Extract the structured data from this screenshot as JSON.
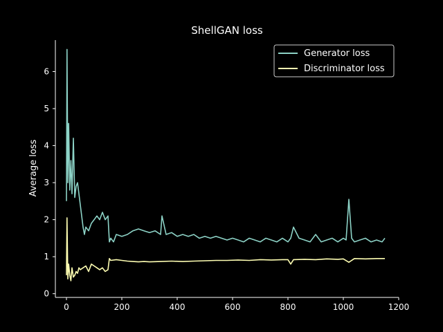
{
  "chart_data": {
    "type": "line",
    "title": "ShellGAN loss",
    "xlabel": "",
    "ylabel": "Average loss",
    "xlim": [
      -40,
      1200
    ],
    "ylim": [
      -0.1,
      6.85
    ],
    "xticks": [
      0,
      200,
      400,
      600,
      800,
      1000,
      1200
    ],
    "yticks": [
      0,
      1,
      2,
      3,
      4,
      5,
      6
    ],
    "xtick_labels": [
      "0",
      "200",
      "400",
      "600",
      "800",
      "1000",
      "1200"
    ],
    "ytick_labels": [
      "0",
      "1",
      "2",
      "3",
      "4",
      "5",
      "6"
    ],
    "grid": false,
    "legend_position": "top-right",
    "series": [
      {
        "name": "Generator loss",
        "color": "#8dd3c7",
        "x": [
          0,
          2,
          5,
          8,
          12,
          16,
          20,
          25,
          30,
          35,
          40,
          45,
          50,
          55,
          60,
          65,
          70,
          80,
          90,
          100,
          110,
          120,
          130,
          140,
          150,
          155,
          160,
          170,
          180,
          200,
          220,
          240,
          260,
          280,
          300,
          320,
          340,
          345,
          360,
          380,
          400,
          420,
          440,
          460,
          480,
          500,
          520,
          540,
          560,
          580,
          600,
          620,
          640,
          660,
          680,
          700,
          720,
          740,
          760,
          780,
          800,
          810,
          820,
          840,
          860,
          880,
          900,
          920,
          940,
          960,
          980,
          1000,
          1010,
          1020,
          1030,
          1040,
          1060,
          1080,
          1100,
          1120,
          1140,
          1150
        ],
        "y": [
          2.5,
          6.6,
          3.0,
          4.6,
          2.8,
          3.6,
          2.7,
          4.2,
          2.6,
          2.9,
          3.0,
          2.7,
          2.4,
          2.1,
          1.8,
          1.6,
          1.8,
          1.7,
          1.9,
          2.0,
          2.1,
          2.0,
          2.2,
          2.0,
          2.1,
          1.4,
          1.5,
          1.4,
          1.6,
          1.55,
          1.6,
          1.7,
          1.75,
          1.7,
          1.65,
          1.7,
          1.6,
          2.1,
          1.6,
          1.65,
          1.55,
          1.6,
          1.55,
          1.6,
          1.5,
          1.55,
          1.5,
          1.55,
          1.5,
          1.45,
          1.5,
          1.45,
          1.4,
          1.5,
          1.45,
          1.4,
          1.5,
          1.45,
          1.4,
          1.5,
          1.4,
          1.5,
          1.8,
          1.5,
          1.45,
          1.4,
          1.6,
          1.4,
          1.45,
          1.5,
          1.4,
          1.5,
          1.45,
          2.55,
          1.5,
          1.4,
          1.45,
          1.5,
          1.4,
          1.45,
          1.4,
          1.5
        ]
      },
      {
        "name": "Discriminator loss",
        "color": "#ffffb3",
        "x": [
          0,
          2,
          5,
          8,
          12,
          16,
          20,
          25,
          30,
          35,
          40,
          45,
          50,
          60,
          70,
          80,
          90,
          100,
          110,
          120,
          130,
          140,
          150,
          155,
          160,
          180,
          200,
          220,
          240,
          260,
          280,
          300,
          340,
          380,
          420,
          460,
          500,
          540,
          580,
          620,
          660,
          700,
          740,
          780,
          800,
          810,
          820,
          860,
          900,
          940,
          980,
          1000,
          1020,
          1040,
          1080,
          1120,
          1150
        ],
        "y": [
          0.5,
          2.05,
          0.4,
          0.8,
          0.5,
          0.35,
          0.7,
          0.45,
          0.5,
          0.6,
          0.55,
          0.7,
          0.65,
          0.7,
          0.75,
          0.6,
          0.8,
          0.75,
          0.7,
          0.65,
          0.7,
          0.6,
          0.65,
          0.95,
          0.9,
          0.92,
          0.9,
          0.88,
          0.87,
          0.86,
          0.87,
          0.86,
          0.87,
          0.88,
          0.87,
          0.88,
          0.89,
          0.9,
          0.9,
          0.91,
          0.9,
          0.92,
          0.91,
          0.92,
          0.92,
          0.8,
          0.92,
          0.93,
          0.92,
          0.94,
          0.93,
          0.94,
          0.85,
          0.95,
          0.94,
          0.95,
          0.95
        ]
      }
    ]
  }
}
